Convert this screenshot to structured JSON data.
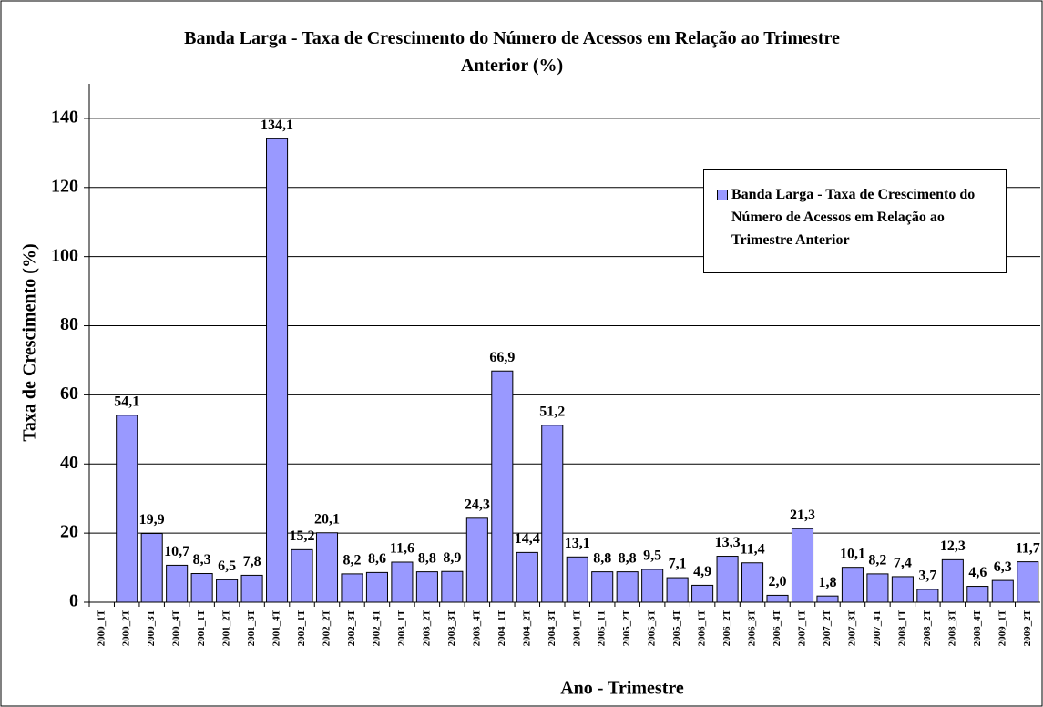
{
  "chart_data": {
    "type": "bar",
    "title": "Banda Larga - Taxa de Crescimento do Número de Acessos em Relação ao Trimestre Anterior (%)",
    "x_label": "Ano - Trimestre",
    "y_label": "Taxa de Crescimento (%)",
    "categories": [
      "2000_1T",
      "2000_2T",
      "2000_3T",
      "2000_4T",
      "2001_1T",
      "2001_2T",
      "2001_3T",
      "2001_4T",
      "2002_1T",
      "2002_2T",
      "2002_3T",
      "2002_4T",
      "2003_1T",
      "2003_2T",
      "2003_3T",
      "2003_4T",
      "2004_1T",
      "2004_2T",
      "2004_3T",
      "2004_4T",
      "2005_1T",
      "2005_2T",
      "2005_3T",
      "2005_4T",
      "2006_1T",
      "2006_2T",
      "2006_3T",
      "2006_4T",
      "2007_1T",
      "2007_2T",
      "2007_3T",
      "2007_4T",
      "2008_1T",
      "2008_2T",
      "2008_3T",
      "2008_4T",
      "2009_1T",
      "2009_2T"
    ],
    "series": [
      {
        "name": "Banda Larga - Taxa de Crescimento do Número de Acessos em Relação ao Trimestre Anterior",
        "color": "#9999ff",
        "values": [
          null,
          54.1,
          19.9,
          10.7,
          8.3,
          6.5,
          7.8,
          134.1,
          15.2,
          20.1,
          8.2,
          8.6,
          11.6,
          8.8,
          8.9,
          24.3,
          66.9,
          14.4,
          51.2,
          13.1,
          8.8,
          8.8,
          9.5,
          7.1,
          4.9,
          13.3,
          11.4,
          2.0,
          21.3,
          1.8,
          10.1,
          8.2,
          7.4,
          3.7,
          12.3,
          4.6,
          6.3,
          11.7
        ],
        "value_labels": [
          null,
          "54,1",
          "19,9",
          "10,7",
          "8,3",
          "6,5",
          "7,8",
          "134,1",
          "15,2",
          "20,1",
          "8,2",
          "8,6",
          "11,6",
          "8,8",
          "8,9",
          "24,3",
          "66,9",
          "14,4",
          "51,2",
          "13,1",
          "8,8",
          "8,8",
          "9,5",
          "7,1",
          "4,9",
          "13,3",
          "11,4",
          "2,0",
          "21,3",
          "1,8",
          "10,1",
          "8,2",
          "7,4",
          "3,7",
          "12,3",
          "4,6",
          "6,3",
          "11,7"
        ]
      }
    ],
    "ylim": [
      0,
      150
    ],
    "yticks": [
      0,
      20,
      40,
      60,
      80,
      100,
      120,
      140
    ],
    "grid": true,
    "legend": "upper right"
  }
}
